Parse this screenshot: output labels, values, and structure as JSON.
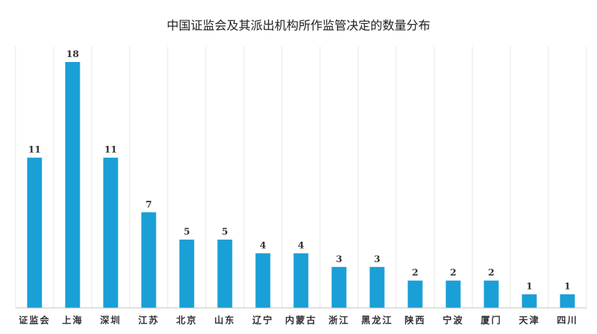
{
  "chart_data": {
    "type": "bar",
    "title": "中国证监会及其派出机构所作监管决定的数量分布",
    "xlabel": "",
    "ylabel": "",
    "categories": [
      "证监会",
      "上海",
      "深圳",
      "江苏",
      "北京",
      "山东",
      "辽宁",
      "内蒙古",
      "浙江",
      "黑龙江",
      "陕西",
      "宁波",
      "厦门",
      "天津",
      "四川"
    ],
    "values": [
      11,
      18,
      11,
      7,
      5,
      5,
      4,
      4,
      3,
      3,
      2,
      2,
      2,
      1,
      1
    ],
    "ylim": [
      0,
      18
    ],
    "grid": "vertical",
    "legend": "none",
    "colors": {
      "bar": "#1a9fd6",
      "grid": "#e6e6e6",
      "axis": "#bfbfbf"
    }
  }
}
